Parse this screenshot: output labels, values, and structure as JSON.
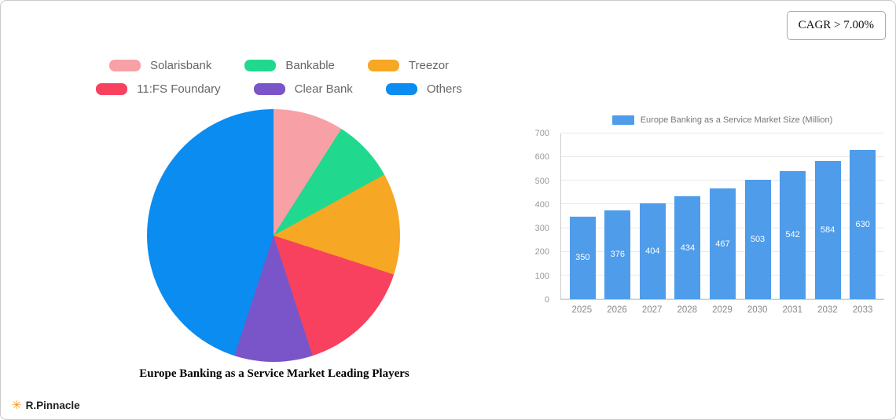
{
  "badge": {
    "cagr_label": "CAGR > 7.00%"
  },
  "brand": {
    "name": "R.Pinnacle",
    "icon": "asterisk-icon",
    "icon_color": "#F7941D"
  },
  "pie_legend": {
    "items": [
      {
        "label": "Solarisbank",
        "color": "#F7A1A7"
      },
      {
        "label": "Bankable",
        "color": "#20D98F"
      },
      {
        "label": "Treezor",
        "color": "#F6A723"
      },
      {
        "label": "11:FS Foundary",
        "color": "#F8415F"
      },
      {
        "label": "Clear Bank",
        "color": "#7A55C9"
      },
      {
        "label": "Others",
        "color": "#0A8CF0"
      }
    ]
  },
  "chart_data": [
    {
      "type": "pie",
      "title": "Europe Banking as a Service Market Leading Players",
      "labels": [
        "Solarisbank",
        "Bankable",
        "Treezor",
        "11:FS Foundary",
        "Clear Bank",
        "Others"
      ],
      "values": [
        9,
        8,
        13,
        15,
        10,
        45
      ],
      "values_are_percent_estimates": true,
      "colors": [
        "#F7A1A7",
        "#20D98F",
        "#F6A723",
        "#F8415F",
        "#7A55C9",
        "#0A8CF0"
      ],
      "start_angle_deg": 0,
      "direction": "clockwise",
      "legend_position": "top"
    },
    {
      "type": "bar",
      "title": "Europe Banking as a Service Market Size (Million)",
      "legend_label": "Europe Banking as a Service Market Size (Million)",
      "categories": [
        "2025",
        "2026",
        "2027",
        "2028",
        "2029",
        "2030",
        "2031",
        "2032",
        "2033"
      ],
      "values": [
        350,
        376,
        404,
        434,
        467,
        503,
        542,
        584,
        630
      ],
      "bar_color": "#4E9CEA",
      "value_label_color": "#ffffff",
      "xlabel": "",
      "ylabel": "",
      "ylim": [
        0,
        700
      ],
      "yticks": [
        0,
        100,
        200,
        300,
        400,
        500,
        600,
        700
      ],
      "grid": true,
      "legend_position": "top"
    }
  ]
}
